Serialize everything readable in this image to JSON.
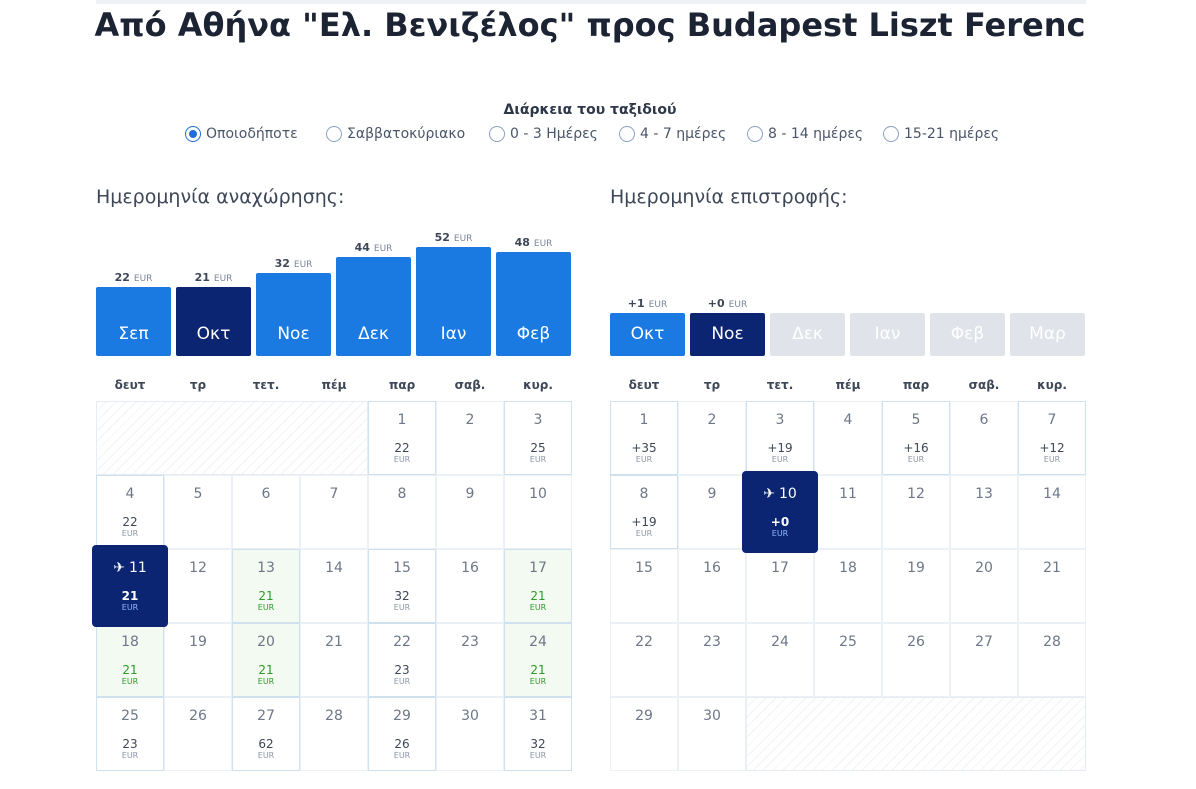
{
  "title": {
    "prefix": "Από",
    "origin": "Αθήνα \"Ελ. Βενιζέλος\"",
    "middle": "προς",
    "destination": "Budapest Liszt Ferenc"
  },
  "duration": {
    "label": "Διάρκεια του ταξιδιού",
    "options": [
      {
        "label": "Οποιοδήποτε",
        "checked": true
      },
      {
        "label": "Σαββατοκύριακο",
        "checked": false
      },
      {
        "label": "0 - 3 Ημέρες",
        "checked": false
      },
      {
        "label": "4 - 7 ημέρες",
        "checked": false
      },
      {
        "label": "8 - 14 ημέρες",
        "checked": false
      },
      {
        "label": "15-21 ημέρες",
        "checked": false
      }
    ]
  },
  "departure": {
    "title": "Ημερομηνία αναχώρησης:",
    "months": [
      {
        "label": "Σεπ",
        "price": "22",
        "currency": "EUR",
        "selected": false
      },
      {
        "label": "Οκτ",
        "price": "21",
        "currency": "EUR",
        "selected": true
      },
      {
        "label": "Νοε",
        "price": "32",
        "currency": "EUR",
        "selected": false
      },
      {
        "label": "Δεκ",
        "price": "44",
        "currency": "EUR",
        "selected": false
      },
      {
        "label": "Ιαν",
        "price": "52",
        "currency": "EUR",
        "selected": false
      },
      {
        "label": "Φεβ",
        "price": "48",
        "currency": "EUR",
        "selected": false
      }
    ],
    "weekdays": [
      "δευτ",
      "τρ",
      "τετ.",
      "πέμ",
      "παρ",
      "σαβ.",
      "κυρ."
    ],
    "days": [
      {
        "day": "1",
        "price": "22",
        "currency": "EUR"
      },
      {
        "day": "2"
      },
      {
        "day": "3",
        "price": "25",
        "currency": "EUR"
      },
      {
        "day": "4",
        "price": "22",
        "currency": "EUR"
      },
      {
        "day": "5"
      },
      {
        "day": "6"
      },
      {
        "day": "7"
      },
      {
        "day": "8"
      },
      {
        "day": "9"
      },
      {
        "day": "10"
      },
      {
        "day": "11",
        "price": "21",
        "currency": "EUR",
        "selected": true
      },
      {
        "day": "12"
      },
      {
        "day": "13",
        "price": "21",
        "currency": "EUR",
        "cheap": true
      },
      {
        "day": "14"
      },
      {
        "day": "15",
        "price": "32",
        "currency": "EUR"
      },
      {
        "day": "16"
      },
      {
        "day": "17",
        "price": "21",
        "currency": "EUR",
        "cheap": true
      },
      {
        "day": "18",
        "price": "21",
        "currency": "EUR",
        "cheap": true
      },
      {
        "day": "19"
      },
      {
        "day": "20",
        "price": "21",
        "currency": "EUR",
        "cheap": true
      },
      {
        "day": "21"
      },
      {
        "day": "22",
        "price": "23",
        "currency": "EUR"
      },
      {
        "day": "23"
      },
      {
        "day": "24",
        "price": "21",
        "currency": "EUR",
        "cheap": true
      },
      {
        "day": "25",
        "price": "23",
        "currency": "EUR"
      },
      {
        "day": "26"
      },
      {
        "day": "27",
        "price": "62",
        "currency": "EUR"
      },
      {
        "day": "28"
      },
      {
        "day": "29",
        "price": "26",
        "currency": "EUR"
      },
      {
        "day": "30"
      },
      {
        "day": "31",
        "price": "32",
        "currency": "EUR"
      }
    ]
  },
  "return": {
    "title": "Ημερομηνία επιστροφής:",
    "months": [
      {
        "label": "Οκτ",
        "price": "+1",
        "currency": "EUR",
        "selected": false
      },
      {
        "label": "Νοε",
        "price": "+0",
        "currency": "EUR",
        "selected": true
      },
      {
        "label": "Δεκ",
        "disabled": true
      },
      {
        "label": "Ιαν",
        "disabled": true
      },
      {
        "label": "Φεβ",
        "disabled": true
      },
      {
        "label": "Μαρ",
        "disabled": true
      }
    ],
    "weekdays": [
      "δευτ",
      "τρ",
      "τετ.",
      "πέμ",
      "παρ",
      "σαβ.",
      "κυρ."
    ],
    "days": [
      {
        "day": "1",
        "price": "+35",
        "currency": "EUR"
      },
      {
        "day": "2"
      },
      {
        "day": "3",
        "price": "+19",
        "currency": "EUR"
      },
      {
        "day": "4"
      },
      {
        "day": "5",
        "price": "+16",
        "currency": "EUR"
      },
      {
        "day": "6"
      },
      {
        "day": "7",
        "price": "+12",
        "currency": "EUR"
      },
      {
        "day": "8",
        "price": "+19",
        "currency": "EUR"
      },
      {
        "day": "9"
      },
      {
        "day": "10",
        "price": "+0",
        "currency": "EUR",
        "selected": true
      },
      {
        "day": "11"
      },
      {
        "day": "12"
      },
      {
        "day": "13"
      },
      {
        "day": "14"
      },
      {
        "day": "15"
      },
      {
        "day": "16"
      },
      {
        "day": "17"
      },
      {
        "day": "18"
      },
      {
        "day": "19"
      },
      {
        "day": "20"
      },
      {
        "day": "21"
      },
      {
        "day": "22"
      },
      {
        "day": "23"
      },
      {
        "day": "24"
      },
      {
        "day": "25"
      },
      {
        "day": "26"
      },
      {
        "day": "27"
      },
      {
        "day": "28"
      },
      {
        "day": "29"
      },
      {
        "day": "30"
      }
    ]
  },
  "colors": {
    "primary": "#1a7ae2",
    "selected": "#0c2573",
    "disabled": "#e0e3e9",
    "cheap_text": "#2e9b2c",
    "cheap_bg": "#f2faf1"
  },
  "icons": {
    "plane": "plane-icon"
  }
}
